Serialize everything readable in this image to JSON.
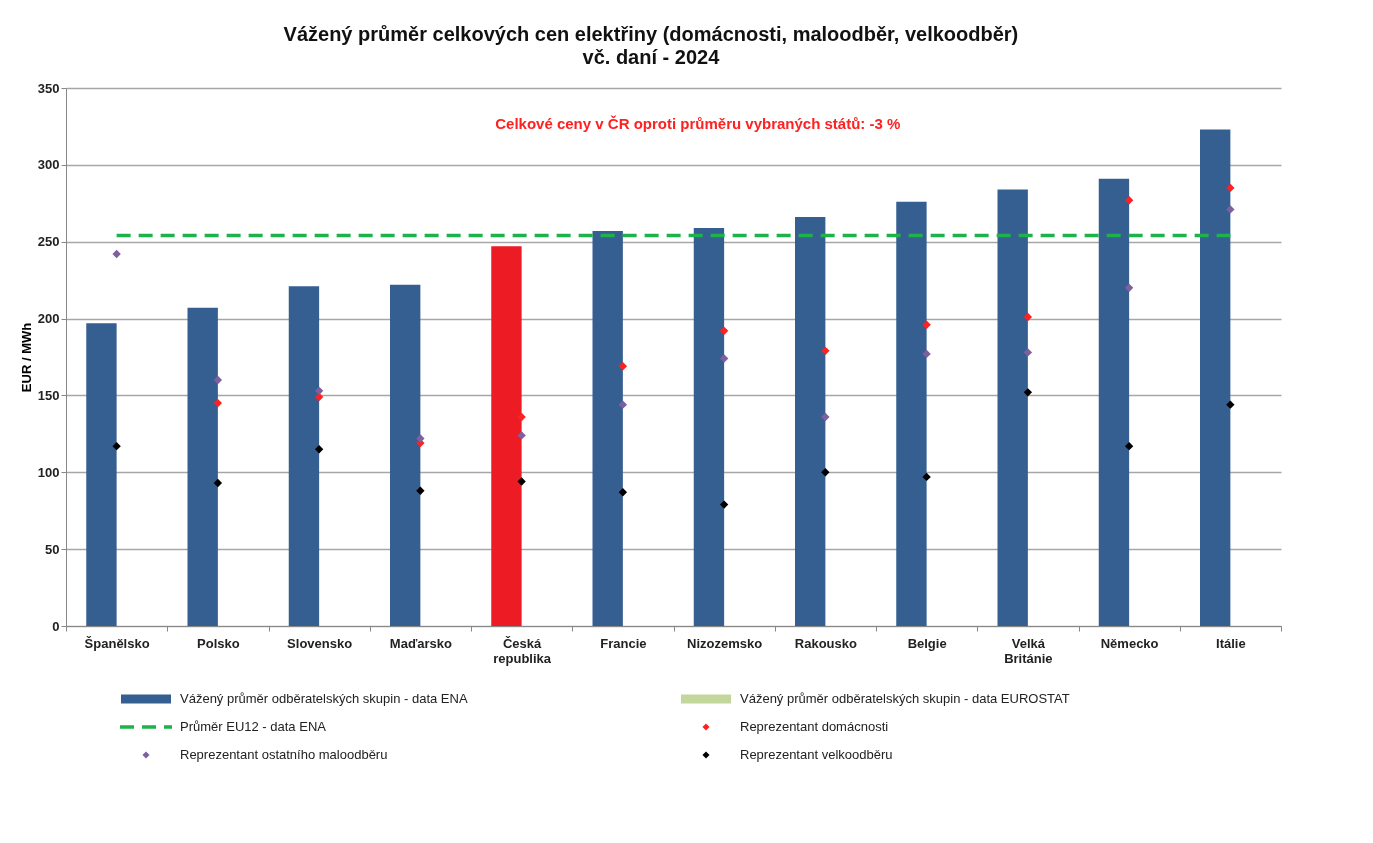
{
  "chart_data": {
    "type": "bar",
    "title": "Vážený průměr celkových cen elektřiny (domácnosti, maloodběr, velkoodběr)",
    "subtitle": "vč. daní - 2024",
    "ylabel": "EUR / MWh",
    "categories": [
      "Španělsko",
      "Polsko",
      "Slovensko",
      "Maďarsko",
      "Česká republika",
      "Francie",
      "Nizozemsko",
      "Rakousko",
      "Belgie",
      "Velká Británie",
      "Německo",
      "Itálie"
    ],
    "series": [
      {
        "name": "Vážený průměr odběratelských skupin - data ENA",
        "color": "#355f91",
        "colors": [
          "#355f91",
          "#355f91",
          "#355f91",
          "#355f91",
          "#ed1c24",
          "#355f91",
          "#355f91",
          "#355f91",
          "#355f91",
          "#355f91",
          "#355f91",
          "#355f91"
        ],
        "values": [
          197,
          207,
          221,
          222,
          247,
          257,
          259,
          266,
          276,
          284,
          291,
          323
        ]
      },
      {
        "name": "Vážený průměr odběratelských skupin - data EUROSTAT",
        "type": "bar",
        "color": "#c3d69b",
        "values": [
          null,
          null,
          null,
          null,
          null,
          null,
          null,
          null,
          null,
          null,
          null,
          null
        ]
      },
      {
        "name": "Průměr EU12 - data ENA",
        "type": "line",
        "color": "#1db34a",
        "line_style": "dashed",
        "values": [
          254,
          254,
          254,
          254,
          254,
          254,
          254,
          254,
          254,
          254,
          254,
          254
        ]
      },
      {
        "name": "Reprezentant domácnosti",
        "type": "scatter",
        "color": "#ff2020",
        "marker": "diamond",
        "values": [
          null,
          145,
          149,
          119,
          136,
          169,
          192,
          179,
          196,
          201,
          277,
          285
        ]
      },
      {
        "name": "Reprezentant ostatního maloodběru",
        "type": "scatter",
        "color": "#7e5fa0",
        "marker": "diamond",
        "values": [
          242,
          160,
          153,
          122,
          124,
          144,
          174,
          136,
          177,
          178,
          220,
          271
        ]
      },
      {
        "name": "Reprezentant velkoodběru",
        "type": "scatter",
        "color": "#000000",
        "marker": "diamond",
        "values": [
          117,
          93,
          115,
          88,
          94,
          87,
          79,
          100,
          97,
          152,
          117,
          144
        ]
      }
    ],
    "ylim": [
      0,
      350
    ],
    "yticks": [
      0,
      50,
      100,
      150,
      200,
      250,
      300,
      350
    ],
    "grid": "y",
    "legend": "bottom",
    "annotations": [
      "Celkové ceny v ČR oproti průměru vybraných států: -3 %"
    ]
  }
}
